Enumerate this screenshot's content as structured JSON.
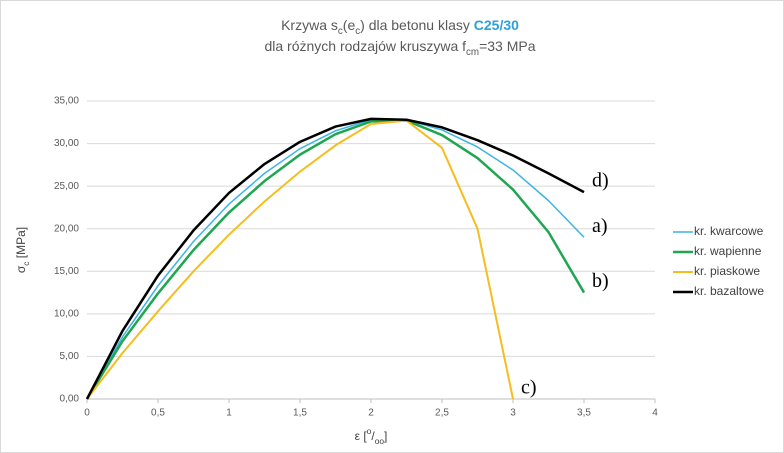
{
  "chart_data": {
    "type": "line",
    "title_parts": [
      {
        "text": "Krzywa s"
      },
      {
        "text": "c",
        "sub": true
      },
      {
        "text": "(e"
      },
      {
        "text": "c",
        "sub": true
      },
      {
        "text": ") dla betonu klasy "
      },
      {
        "text": "C25/30",
        "bold": true,
        "color": "#2e9fd8"
      }
    ],
    "subtitle_parts": [
      {
        "text": "dla różnych rodzajów kruszywa f"
      },
      {
        "text": "cm",
        "sub": true
      },
      {
        "text": "=33 MPa"
      }
    ],
    "ylabel_parts": [
      {
        "text": "σ"
      },
      {
        "text": "c",
        "sub": true
      },
      {
        "text": " [MPa]"
      }
    ],
    "xlabel_parts": [
      {
        "text": "ε ["
      },
      {
        "text": "o",
        "sup": true
      },
      {
        "text": "/"
      },
      {
        "text": "oo",
        "sub": true
      },
      {
        "text": "]"
      }
    ],
    "x": [
      0,
      0.25,
      0.5,
      0.75,
      1,
      1.25,
      1.5,
      1.75,
      2,
      2.25,
      2.5,
      2.75,
      3,
      3.25,
      3.5
    ],
    "series": [
      {
        "name": "kr. kwarcowe",
        "color": "#3cb4e6",
        "width": 1.5,
        "end_label": "a)",
        "values": [
          0,
          7.3,
          13.3,
          18.5,
          22.9,
          26.5,
          29.4,
          31.5,
          32.8,
          32.8,
          31.6,
          29.6,
          26.9,
          23.3,
          19.0
        ]
      },
      {
        "name": "kr. wapienne",
        "color": "#1fa650",
        "width": 2.5,
        "end_label": "b)",
        "values": [
          0,
          6.8,
          12.4,
          17.5,
          21.9,
          25.6,
          28.7,
          31.1,
          32.6,
          32.7,
          31.0,
          28.3,
          24.6,
          19.6,
          12.5
        ]
      },
      {
        "name": "kr. piaskowe",
        "color": "#f5bd1f",
        "width": 2,
        "end_label": "c)",
        "values": [
          0,
          5.4,
          10.3,
          15.0,
          19.3,
          23.2,
          26.7,
          29.8,
          32.3,
          32.7,
          29.5,
          20.0,
          0,
          null,
          null
        ]
      },
      {
        "name": "kr. bazaltowe",
        "color": "#000000",
        "width": 2.5,
        "end_label": "d)",
        "values": [
          0,
          8.0,
          14.5,
          19.8,
          24.2,
          27.6,
          30.2,
          32.0,
          32.9,
          32.8,
          31.9,
          30.4,
          28.6,
          26.5,
          24.3
        ]
      }
    ],
    "xlim": [
      0,
      4
    ],
    "ylim": [
      0,
      35
    ],
    "xticks": [
      0,
      {
        "value": 0.5,
        "label": "0,5"
      },
      1,
      {
        "value": 1.5,
        "label": "1,5"
      },
      2,
      {
        "value": 2.5,
        "label": "2,5"
      },
      3,
      {
        "value": 3.5,
        "label": "3,5"
      },
      4
    ],
    "yticks": [
      {
        "value": 0,
        "label": "0,00"
      },
      {
        "value": 5,
        "label": "5,00"
      },
      {
        "value": 10,
        "label": "10,00"
      },
      {
        "value": 15,
        "label": "15,00"
      },
      {
        "value": 20,
        "label": "20,00"
      },
      {
        "value": 25,
        "label": "25,00"
      },
      {
        "value": 30,
        "label": "30,00"
      },
      {
        "value": 35,
        "label": "35,00"
      }
    ],
    "grid": true,
    "legend": "right"
  }
}
